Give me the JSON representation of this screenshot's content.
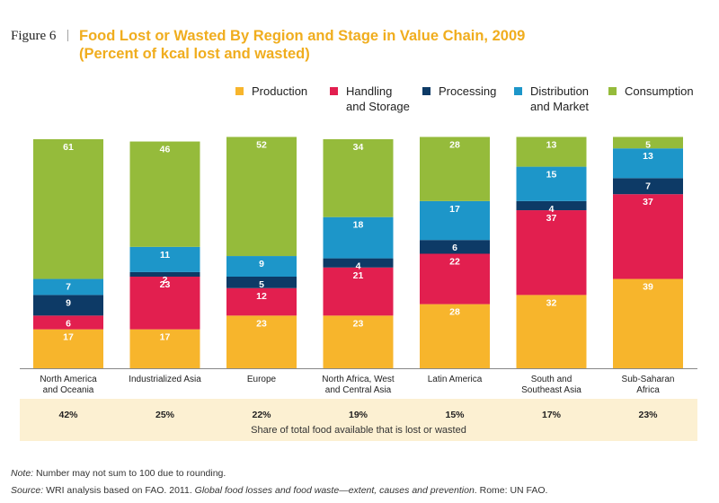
{
  "figure_label": "Figure 6",
  "separator": "|",
  "title_line1": "Food Lost or Wasted By Region and Stage in Value Chain, 2009",
  "title_line2": "(Percent of kcal lost and wasted)",
  "share_caption": "Share of total food available that is lost or wasted",
  "note_label": "Note:",
  "note_text": "Number may not sum to 100 due to rounding.",
  "source_label": "Source:",
  "source_text1": "WRI analysis based on FAO. 2011. ",
  "source_italic": "Global food losses and food waste—extent, causes and prevention",
  "source_text2": ". Rome: UN FAO.",
  "colors": {
    "production": "#f7b52c",
    "handling": "#e21f4f",
    "processing": "#0d3a66",
    "distribution": "#1d96c9",
    "consumption": "#95bb3b",
    "share_bg": "#fcf0d2",
    "title": "#f0ad1e"
  },
  "chart_data": {
    "type": "bar",
    "stacked": true,
    "percent_stacked": true,
    "categories": [
      "North America\nand Oceania",
      "Industrialized Asia",
      "Europe",
      "North Africa, West\nand Central Asia",
      "Latin America",
      "South and\nSoutheast Asia",
      "Sub-Saharan\nAfrica"
    ],
    "series": [
      {
        "name": "Production",
        "color": "#f7b52c",
        "values": [
          17,
          17,
          23,
          23,
          28,
          32,
          39
        ]
      },
      {
        "name": "Handling\nand Storage",
        "color": "#e21f4f",
        "values": [
          6,
          23,
          12,
          21,
          22,
          37,
          37
        ]
      },
      {
        "name": "Processing",
        "color": "#0d3a66",
        "values": [
          9,
          2,
          5,
          4,
          6,
          4,
          7
        ]
      },
      {
        "name": "Distribution\nand Market",
        "color": "#1d96c9",
        "values": [
          7,
          11,
          9,
          18,
          17,
          15,
          13
        ]
      },
      {
        "name": "Consumption",
        "color": "#95bb3b",
        "values": [
          61,
          46,
          52,
          34,
          28,
          13,
          5
        ]
      }
    ],
    "share_lost_or_wasted": [
      "42%",
      "25%",
      "22%",
      "19%",
      "15%",
      "17%",
      "23%"
    ],
    "ylim": [
      0,
      100
    ],
    "legend_position": "top",
    "grid": false
  }
}
